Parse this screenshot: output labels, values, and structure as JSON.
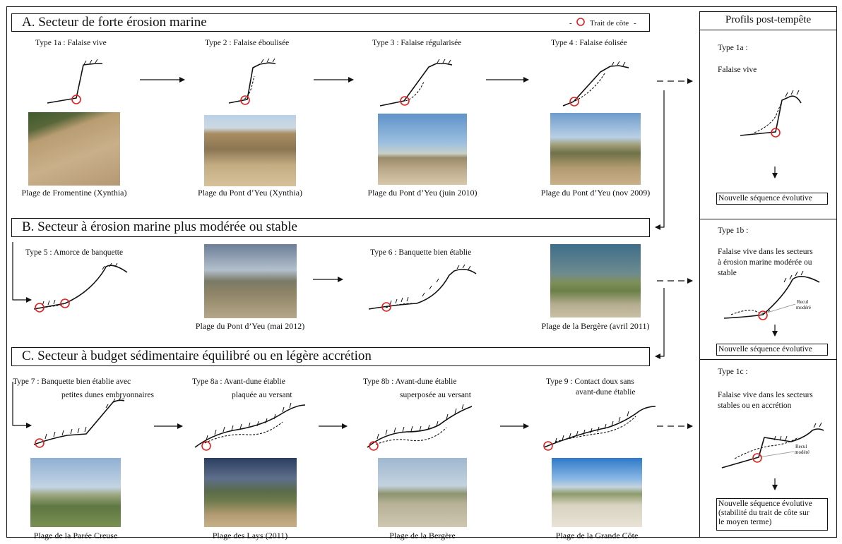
{
  "sections": {
    "a": "A. Secteur de forte érosion marine",
    "b": "B. Secteur à érosion marine plus modérée ou stable",
    "c": "C. Secteur à budget sédimentaire équilibré ou en légère accrétion"
  },
  "legend": {
    "dash_left": "-",
    "label": "Trait de côte",
    "dash_right": "-",
    "marker_color": "#e02020"
  },
  "types": {
    "t1a": "Type 1a : Falaise vive",
    "t2": "Type 2 : Falaise éboulisée",
    "t3": "Type 3 : Falaise régularisée",
    "t4": "Type 4 : Falaise éolisée",
    "t5": "Type 5 : Amorce de banquette",
    "t6": "Type 6 : Banquette bien établie",
    "t7_l1": "Type 7 : Banquette bien établie avec",
    "t7_l2": "petites dunes embryonnaires",
    "t8a_l1": "Type 8a : Avant-dune établie",
    "t8a_l2": "plaquée au versant",
    "t8b_l1": "Type 8b : Avant-dune établie",
    "t8b_l2": "superposée au versant",
    "t9_l1": "Type 9 : Contact doux sans",
    "t9_l2": "avant-dune établie"
  },
  "captions": {
    "p1": "Plage de Fromentine (Xynthia)",
    "p2": "Plage du Pont d’Yeu (Xynthia)",
    "p3": "Plage du Pont d’Yeu  (juin 2010)",
    "p4": "Plage du Pont d’Yeu  (nov 2009)",
    "p5": "Plage du Pont d’Yeu (mai 2012)",
    "p6": "Plage de la Bergère (avril 2011)",
    "p7": "Plage de la Parée Creuse",
    "p8": "Plage des Lays (2011)",
    "p9": "Plage de la Bergère",
    "p10": "Plage de la Grande Côte"
  },
  "right_panel": {
    "header": "Profils post-tempête",
    "s1_type": "Type 1a :",
    "s1_desc": "Falaise vive",
    "s1_box": "Nouvelle séquence évolutive",
    "s2_type": "Type 1b :",
    "s2_desc_l1": "Falaise vive dans les secteurs",
    "s2_desc_l2": "à érosion marine modérée ou",
    "s2_desc_l3": "stable",
    "s2_recul_l1": "Recul",
    "s2_recul_l2": "modéré",
    "s2_box": "Nouvelle séquence évolutive",
    "s3_type": "Type 1c :",
    "s3_desc_l1": "Falaise vive dans les secteurs",
    "s3_desc_l2": "stables ou en accrétion",
    "s3_recul_l1": "Recul",
    "s3_recul_l2": "modéré",
    "s3_box_l1": "Nouvelle séquence évolutive",
    "s3_box_l2": "(stabilité du trait de côte sur",
    "s3_box_l3": "le moyen terme)"
  },
  "colors": {
    "marker": "#e02020",
    "line": "#111111"
  }
}
